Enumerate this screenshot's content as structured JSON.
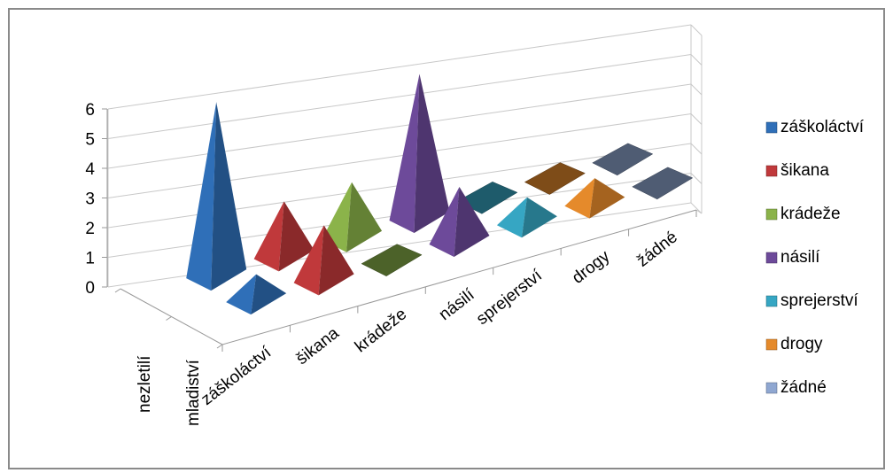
{
  "chart_data": {
    "type": "bar",
    "subtype": "3d-pyramid",
    "title": "",
    "xlabel": "",
    "ylabel": "",
    "ylim": [
      0,
      6
    ],
    "yticks": [
      "0",
      "1",
      "2",
      "3",
      "4",
      "5",
      "6"
    ],
    "categories": [
      "záškoláctví",
      "šikana",
      "krádeže",
      "násilí",
      "sprejerství",
      "drogy",
      "žádné"
    ],
    "series_depth": [
      "nezletilí",
      "mladiství"
    ],
    "legend": {
      "position": "right",
      "entries": [
        "záškoláctví",
        "šikana",
        "krádeže",
        "násilí",
        "sprejerství",
        "drogy",
        "žádné"
      ]
    },
    "colors": [
      "#2F6FB8",
      "#C0393B",
      "#8BB34A",
      "#6D4A9A",
      "#36A6C3",
      "#E58A2B",
      "#8FA7D1"
    ],
    "grid": true,
    "series": [
      {
        "name": "nezletilí",
        "values": [
          6,
          2,
          2,
          5,
          0,
          0,
          0
        ]
      },
      {
        "name": "mladiství",
        "values": [
          1,
          2,
          0,
          2,
          1,
          1,
          0
        ]
      }
    ]
  }
}
